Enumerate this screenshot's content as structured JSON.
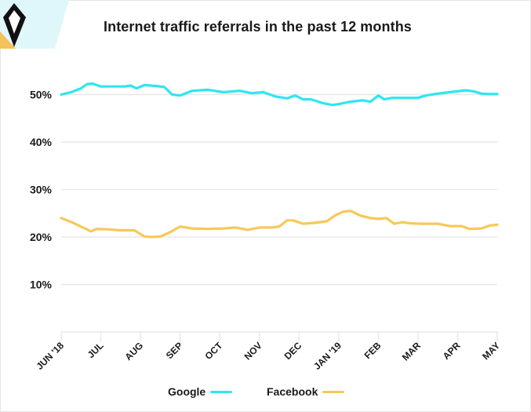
{
  "header": {
    "title": "Internet traffic referrals in the past 12 months"
  },
  "colors": {
    "google": "#2ee6f0",
    "facebook": "#f7c85a",
    "grid": "#e8e8e8",
    "logo_bg": "#dff7fa",
    "logo_accent": "#f5c15a",
    "logo_mark": "#111111"
  },
  "logo_icon": "diamond-logo-icon",
  "chart_data": {
    "type": "line",
    "title": "Internet traffic referrals in the past 12 months",
    "xlabel": "",
    "ylabel": "",
    "x_ticks": [
      "JUN '18",
      "JUL",
      "AUG",
      "SEP",
      "OCT",
      "NOV",
      "DEC",
      "JAN '19",
      "FEB",
      "MAR",
      "APR",
      "MAY"
    ],
    "y_ticks": [
      "10%",
      "20%",
      "30%",
      "40%",
      "50%"
    ],
    "ylim": [
      0,
      55
    ],
    "grid": true,
    "legend_position": "bottom",
    "series": [
      {
        "name": "Google",
        "color": "#2ee6f0",
        "x": [
          0,
          0.25,
          0.5,
          0.65,
          0.8,
          1.0,
          1.3,
          1.6,
          1.75,
          1.9,
          2.1,
          2.4,
          2.6,
          2.8,
          3.0,
          3.3,
          3.7,
          4.1,
          4.5,
          4.8,
          5.1,
          5.4,
          5.7,
          5.9,
          6.1,
          6.3,
          6.6,
          6.85,
          7.0,
          7.3,
          7.6,
          7.8,
          8.0,
          8.15,
          8.35,
          8.6,
          9.0,
          9.2,
          9.5,
          9.9,
          10.2,
          10.4,
          10.6,
          10.8,
          11.0
        ],
        "y": [
          50.0,
          50.5,
          51.3,
          52.2,
          52.3,
          51.7,
          51.7,
          51.7,
          51.9,
          51.3,
          52.0,
          51.8,
          51.6,
          50.0,
          49.8,
          50.8,
          51.0,
          50.5,
          50.8,
          50.3,
          50.5,
          49.6,
          49.2,
          49.8,
          49.0,
          49.0,
          48.2,
          47.8,
          48.0,
          48.5,
          48.8,
          48.5,
          49.8,
          49.0,
          49.3,
          49.3,
          49.3,
          49.8,
          50.2,
          50.6,
          50.9,
          50.7,
          50.2,
          50.1,
          50.1
        ]
      },
      {
        "name": "Facebook",
        "color": "#f7c85a",
        "x": [
          0,
          0.3,
          0.55,
          0.75,
          0.9,
          1.2,
          1.5,
          1.85,
          2.1,
          2.3,
          2.5,
          2.75,
          3.0,
          3.3,
          3.7,
          4.1,
          4.4,
          4.7,
          5.0,
          5.3,
          5.5,
          5.7,
          5.85,
          6.1,
          6.4,
          6.7,
          6.9,
          7.1,
          7.3,
          7.55,
          7.8,
          8.0,
          8.2,
          8.4,
          8.6,
          8.8,
          9.1,
          9.5,
          9.8,
          10.1,
          10.3,
          10.6,
          10.8,
          11.0
        ],
        "y": [
          24.0,
          23.0,
          22.0,
          21.2,
          21.7,
          21.6,
          21.4,
          21.4,
          20.1,
          20.0,
          20.1,
          21.0,
          22.2,
          21.8,
          21.7,
          21.8,
          22.0,
          21.5,
          22.0,
          22.0,
          22.2,
          23.5,
          23.5,
          22.8,
          23.0,
          23.3,
          24.5,
          25.3,
          25.5,
          24.5,
          24.0,
          23.8,
          24.0,
          22.8,
          23.1,
          22.9,
          22.8,
          22.8,
          22.3,
          22.3,
          21.7,
          21.8,
          22.4,
          22.6
        ]
      }
    ]
  }
}
